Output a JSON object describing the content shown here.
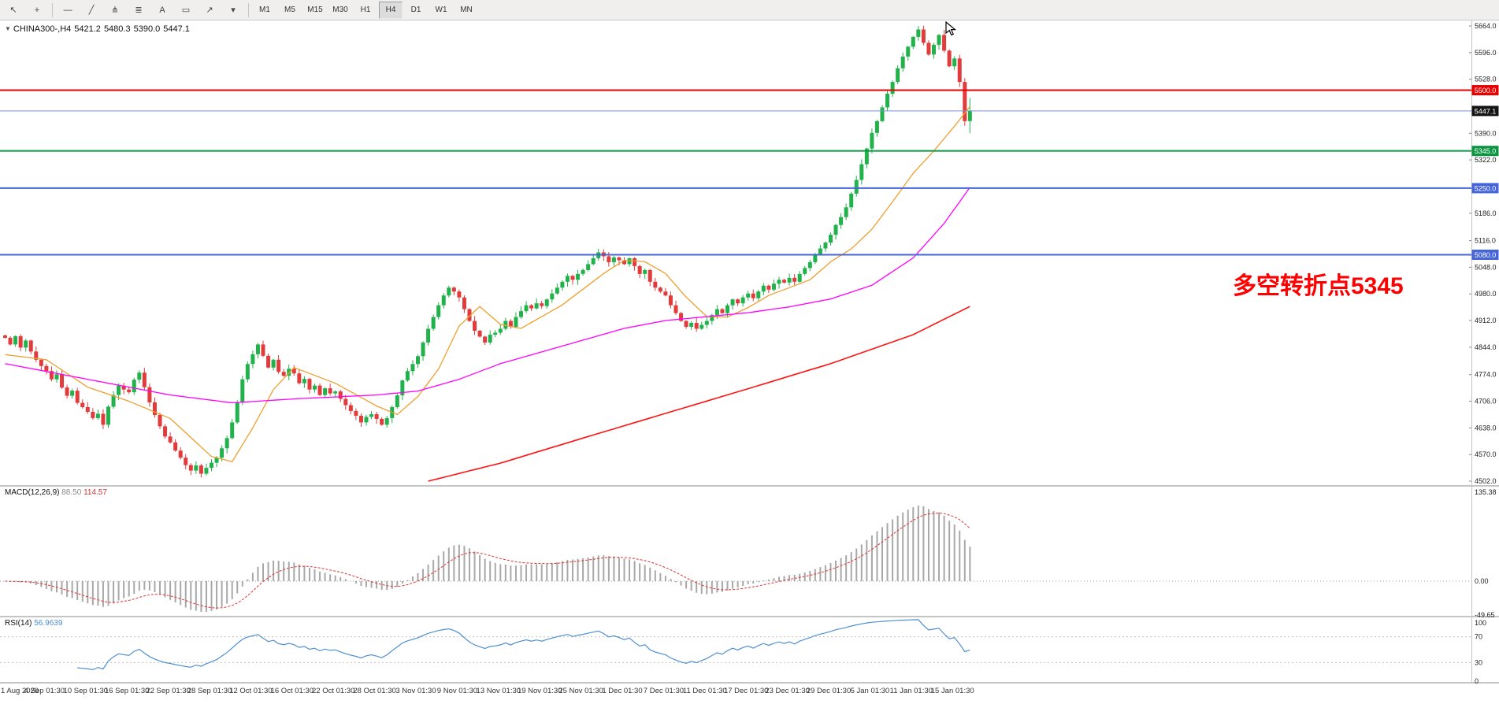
{
  "toolbar": {
    "tools": [
      {
        "name": "cursor",
        "glyph": "↖"
      },
      {
        "name": "crosshair",
        "glyph": "+"
      },
      {
        "name": "separator"
      },
      {
        "name": "horizontal-line-tool",
        "glyph": "—"
      },
      {
        "name": "trendline-tool",
        "glyph": "╱"
      },
      {
        "name": "pitchfork-tool",
        "glyph": "⋔"
      },
      {
        "name": "fibonacci-tool",
        "glyph": "≣"
      },
      {
        "name": "text-tool",
        "glyph": "A"
      },
      {
        "name": "shapes-tool",
        "glyph": "▭"
      },
      {
        "name": "arrows-tool",
        "glyph": "↗"
      },
      {
        "name": "arrows-dropdown-caret",
        "glyph": "▾"
      },
      {
        "name": "separator"
      }
    ],
    "timeframes": [
      "M1",
      "M5",
      "M15",
      "M30",
      "H1",
      "H4",
      "D1",
      "W1",
      "MN"
    ],
    "active_timeframe": "H4"
  },
  "symbol_bar": {
    "symbol": "CHINA300-,H4",
    "open": "5421.2",
    "high": "5480.3",
    "low": "5390.0",
    "close": "5447.1"
  },
  "chart_data": {
    "type": "candlestick",
    "title": "CHINA300- H4",
    "ylim": [
      4492,
      5678
    ],
    "y_ticks": [
      "5664.0",
      "5596.0",
      "5528.0",
      "5390.0",
      "5322.0",
      "5186.0",
      "5116.0",
      "5048.0",
      "4980.0",
      "4912.0",
      "4844.0",
      "4774.0",
      "4706.0",
      "4638.0",
      "4570.0",
      "4502.0"
    ],
    "closes": [
      4868,
      4851,
      4872,
      4843,
      4861,
      4833,
      4812,
      4796,
      4783,
      4762,
      4775,
      4741,
      4720,
      4733,
      4702,
      4691,
      4679,
      4663,
      4674,
      4646,
      4692,
      4722,
      4746,
      4736,
      4729,
      4761,
      4779,
      4742,
      4703,
      4671,
      4642,
      4616,
      4601,
      4580,
      4562,
      4543,
      4529,
      4542,
      4521,
      4536,
      4549,
      4562,
      4586,
      4612,
      4652,
      4703,
      4762,
      4801,
      4826,
      4851,
      4822,
      4792,
      4812,
      4781,
      4771,
      4789,
      4777,
      4752,
      4763,
      4736,
      4746,
      4722,
      4739,
      4726,
      4731,
      4712,
      4696,
      4681,
      4669,
      4652,
      4666,
      4673,
      4661,
      4646,
      4663,
      4691,
      4721,
      4759,
      4783,
      4801,
      4821,
      4856,
      4891,
      4921,
      4951,
      4976,
      4996,
      4986,
      4971,
      4941,
      4911,
      4886,
      4871,
      4856,
      4876,
      4881,
      4891,
      4911,
      4896,
      4921,
      4936,
      4951,
      4943,
      4956,
      4949,
      4966,
      4981,
      4996,
      5011,
      5026,
      5016,
      5031,
      5041,
      5056,
      5071,
      5086,
      5076,
      5061,
      5073,
      5066,
      5056,
      5071,
      5051,
      5031,
      5041,
      5011,
      4996,
      4986,
      4976,
      4951,
      4931,
      4911,
      4896,
      4906,
      4891,
      4901,
      4911,
      4926,
      4941,
      4931,
      4951,
      4966,
      4956,
      4971,
      4981,
      4969,
      4986,
      5001,
      4991,
      5006,
      5016,
      5009,
      5021,
      5011,
      5031,
      5046,
      5061,
      5081,
      5096,
      5111,
      5131,
      5156,
      5176,
      5201,
      5236,
      5271,
      5311,
      5351,
      5391,
      5421,
      5456,
      5491,
      5521,
      5556,
      5586,
      5611,
      5636,
      5655,
      5621,
      5591,
      5616,
      5641,
      5601,
      5561,
      5581,
      5521,
      5421,
      5447.1
    ],
    "last_bar": {
      "open": 5421.2,
      "high": 5480.3,
      "low": 5390.0,
      "close": 5447.1
    },
    "up_color": "#21b24b",
    "down_color": "#e23b3b",
    "h_lines": [
      {
        "value": 5500.0,
        "label": "5500.0",
        "color": "#e80000",
        "width": 2
      },
      {
        "value": 5345.0,
        "label": "5345.0",
        "color": "#0c9642",
        "width": 2
      },
      {
        "value": 5250.0,
        "label": "5250.0",
        "color": "#4565d8",
        "width": 2
      },
      {
        "value": 5080.0,
        "label": "5080.0",
        "color": "#4565d8",
        "width": 2
      }
    ],
    "current_price": {
      "value": 5447.1,
      "label": "5447.1",
      "line_color": "#7793c8",
      "tag_color": "#141414"
    },
    "moving_averages": [
      {
        "name": "ma-fast",
        "color": "#ee9f2f",
        "anchors": [
          [
            0,
            4825
          ],
          [
            8,
            4812
          ],
          [
            16,
            4742
          ],
          [
            24,
            4706
          ],
          [
            32,
            4662
          ],
          [
            40,
            4565
          ],
          [
            44,
            4552
          ],
          [
            48,
            4638
          ],
          [
            52,
            4736
          ],
          [
            56,
            4792
          ],
          [
            64,
            4752
          ],
          [
            72,
            4694
          ],
          [
            76,
            4672
          ],
          [
            80,
            4718
          ],
          [
            84,
            4788
          ],
          [
            88,
            4898
          ],
          [
            92,
            4948
          ],
          [
            96,
            4902
          ],
          [
            100,
            4892
          ],
          [
            104,
            4922
          ],
          [
            108,
            4952
          ],
          [
            112,
            4992
          ],
          [
            116,
            5032
          ],
          [
            120,
            5066
          ],
          [
            124,
            5062
          ],
          [
            128,
            5032
          ],
          [
            132,
            4972
          ],
          [
            136,
            4922
          ],
          [
            140,
            4921
          ],
          [
            144,
            4945
          ],
          [
            148,
            4976
          ],
          [
            152,
            4996
          ],
          [
            156,
            5016
          ],
          [
            160,
            5062
          ],
          [
            164,
            5095
          ],
          [
            168,
            5145
          ],
          [
            172,
            5215
          ],
          [
            176,
            5288
          ],
          [
            180,
            5345
          ],
          [
            184,
            5408
          ],
          [
            187,
            5458
          ]
        ]
      },
      {
        "name": "ma-mid",
        "color": "#ff00ff",
        "anchors": [
          [
            0,
            4802
          ],
          [
            16,
            4762
          ],
          [
            32,
            4722
          ],
          [
            44,
            4702
          ],
          [
            56,
            4712
          ],
          [
            72,
            4722
          ],
          [
            80,
            4732
          ],
          [
            88,
            4762
          ],
          [
            96,
            4802
          ],
          [
            104,
            4832
          ],
          [
            112,
            4862
          ],
          [
            120,
            4892
          ],
          [
            128,
            4912
          ],
          [
            136,
            4922
          ],
          [
            144,
            4932
          ],
          [
            152,
            4947
          ],
          [
            160,
            4967
          ],
          [
            168,
            5002
          ],
          [
            176,
            5072
          ],
          [
            182,
            5160
          ],
          [
            187,
            5252
          ]
        ]
      },
      {
        "name": "ma-slow",
        "color": "#ff1414",
        "anchors": [
          [
            82,
            4502
          ],
          [
            96,
            4548
          ],
          [
            112,
            4612
          ],
          [
            128,
            4675
          ],
          [
            144,
            4738
          ],
          [
            160,
            4802
          ],
          [
            176,
            4876
          ],
          [
            187,
            4948
          ]
        ]
      }
    ],
    "annotation": {
      "text": "多空转折点5345",
      "color": "#ff0000"
    },
    "bars_per_label": 8,
    "time_labels": [
      "1 Aug 2020",
      "4 Sep 01:30",
      "10 Sep 01:30",
      "16 Sep 01:30",
      "22 Sep 01:30",
      "28 Sep 01:30",
      "12 Oct 01:30",
      "16 Oct 01:30",
      "22 Oct 01:30",
      "28 Oct 01:30",
      "3 Nov 01:30",
      "9 Nov 01:30",
      "13 Nov 01:30",
      "19 Nov 01:30",
      "25 Nov 01:30",
      "1 Dec 01:30",
      "7 Dec 01:30",
      "11 Dec 01:30",
      "17 Dec 01:30",
      "23 Dec 01:30",
      "29 Dec 01:30",
      "5 Jan 01:30",
      "11 Jan 01:30",
      "15 Jan 01:30"
    ]
  },
  "indicators": {
    "macd": {
      "label": "MACD(12,26,9)",
      "value1": "88.50",
      "value2": "114.57",
      "params": [
        12,
        26,
        9
      ],
      "range": [
        -49.65,
        135.38
      ],
      "axis_ticks": [
        {
          "v": 135.38,
          "label": "135.38"
        },
        {
          "v": 0,
          "label": "0.00"
        },
        {
          "v": -49.65,
          "label": "-49.65"
        }
      ],
      "hist_color": "#a8a8a8",
      "signal_color": "#e03030"
    },
    "rsi": {
      "label": "RSI(14)",
      "value": "56.9639",
      "period": 14,
      "range": [
        0,
        100
      ],
      "axis_ticks": [
        {
          "v": 100,
          "label": "100"
        },
        {
          "v": 70,
          "label": "70"
        },
        {
          "v": 30,
          "label": "30"
        },
        {
          "v": 0,
          "label": "0"
        }
      ],
      "levels": [
        70,
        30
      ],
      "line_color": "#4f8fd0"
    }
  }
}
